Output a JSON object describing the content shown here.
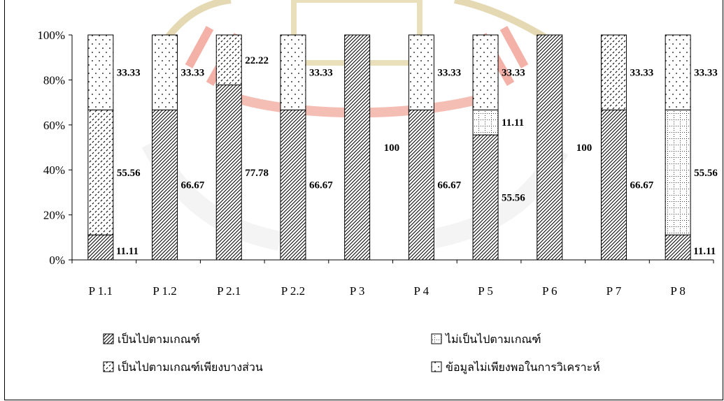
{
  "chart_data": {
    "type": "bar",
    "stacked": true,
    "percent": true,
    "categories": [
      "P 1.1",
      "P 1.2",
      "P 2.1",
      "P 2.2",
      "P 3",
      "P 4",
      "P 5",
      "P 6",
      "P 7",
      "P 8"
    ],
    "series": [
      {
        "name": "เป็นไปตามเกณฑ์",
        "pattern": "diag-dense",
        "values": [
          11.11,
          66.67,
          77.78,
          66.67,
          100,
          66.67,
          55.56,
          100,
          66.67,
          11.11
        ],
        "labels": [
          "11.11",
          "66.67",
          "77.78",
          "66.67",
          "100",
          "66.67",
          "55.56",
          "100",
          "66.67",
          "11.11"
        ]
      },
      {
        "name": "ไม่เป็นไปตามเกณฑ์",
        "pattern": "grid-dotted",
        "values": [
          0,
          0,
          0,
          0,
          0,
          0,
          11.11,
          0,
          0,
          55.56
        ],
        "labels": [
          "",
          "",
          "",
          "",
          "",
          "",
          "11.11",
          "",
          "",
          "55.56"
        ]
      },
      {
        "name": "เป็นไปตามเกณฑ์เพียงบางส่วน",
        "pattern": "diag-dashed",
        "values": [
          55.56,
          0,
          22.22,
          0,
          0,
          0,
          0,
          0,
          33.33,
          0
        ],
        "labels": [
          "55.56",
          "",
          "22.22",
          "",
          "",
          "",
          "",
          "",
          "33.33",
          ""
        ]
      },
      {
        "name": "ข้อมูลไม่เพียงพอในการวิเคราะห์",
        "pattern": "dots",
        "values": [
          33.33,
          33.33,
          0,
          33.33,
          0,
          33.33,
          33.33,
          0,
          0,
          33.33
        ],
        "labels": [
          "33.33",
          "33.33",
          "",
          "33.33",
          "",
          "33.33",
          "33.33",
          "",
          "",
          "33.33"
        ]
      }
    ],
    "y_ticks": [
      "0%",
      "20%",
      "40%",
      "60%",
      "80%",
      "100%"
    ],
    "ylim": [
      0,
      100
    ],
    "grid": false,
    "legend_position": "bottom",
    "xlabel": "",
    "ylabel": ""
  }
}
